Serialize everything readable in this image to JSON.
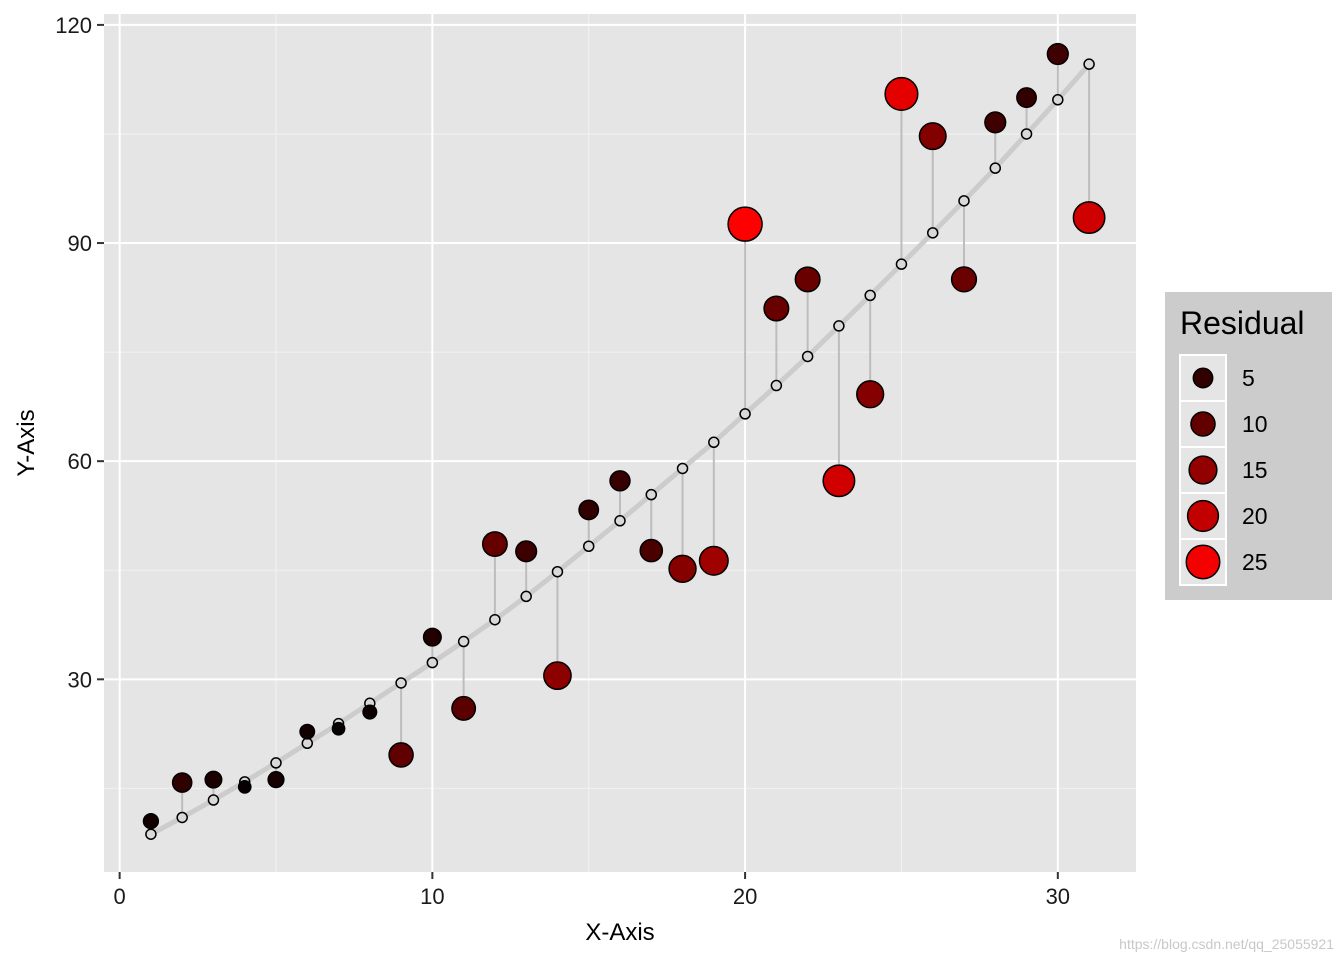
{
  "chart_data": {
    "type": "scatter",
    "xlabel": "X-Axis",
    "ylabel": "Y-Axis",
    "xlim": [
      -0.5,
      32.5
    ],
    "ylim": [
      3.5,
      121.5
    ],
    "x_ticks": [
      0,
      10,
      20,
      30
    ],
    "x_tick_labels": [
      "0",
      "10",
      "20",
      "30"
    ],
    "y_ticks": [
      30,
      60,
      90,
      120
    ],
    "y_tick_labels": [
      "30",
      "60",
      "90",
      "120"
    ],
    "grid": true,
    "panel_background": "#e5e5e5",
    "fitted_line_color": "#cccccc",
    "residual_segment_color": "#bdbdbd",
    "x": [
      1,
      2,
      3,
      4,
      5,
      6,
      7,
      8,
      9,
      10,
      11,
      12,
      13,
      14,
      15,
      16,
      17,
      18,
      19,
      20,
      21,
      22,
      23,
      24,
      25,
      26,
      27,
      28,
      29,
      30,
      31
    ],
    "observed": [
      10.5,
      15.8,
      16.2,
      15.2,
      16.2,
      22.8,
      23.2,
      25.5,
      19.6,
      35.8,
      26.0,
      48.6,
      47.6,
      30.5,
      53.3,
      57.3,
      47.7,
      45.2,
      46.3,
      92.6,
      81.0,
      85.0,
      57.3,
      69.2,
      110.5,
      104.7,
      85.0,
      106.6,
      110.0,
      116.0,
      93.5
    ],
    "predicted": [
      8.7,
      11.0,
      13.4,
      15.9,
      18.5,
      21.2,
      23.9,
      26.7,
      29.5,
      32.3,
      35.2,
      38.2,
      41.4,
      44.8,
      48.3,
      51.8,
      55.4,
      59.0,
      62.6,
      66.5,
      70.4,
      74.4,
      78.6,
      82.8,
      87.1,
      91.4,
      95.8,
      100.3,
      105.0,
      109.7,
      114.6
    ],
    "residual_abs": [
      1.8,
      4.8,
      2.8,
      0.7,
      2.3,
      1.6,
      0.7,
      1.2,
      9.9,
      3.5,
      9.2,
      10.4,
      6.2,
      14.3,
      5.0,
      5.5,
      7.7,
      13.8,
      16.3,
      26.1,
      10.6,
      10.6,
      21.3,
      13.6,
      23.4,
      13.3,
      10.8,
      6.3,
      5.0,
      6.3,
      21.1
    ],
    "color_scale": {
      "low": "#000000",
      "high": "#ff0000",
      "min": 0,
      "max": 26.1
    },
    "legend": {
      "title": "Residual",
      "position": "right",
      "entries": [
        {
          "label": "5",
          "value": 5
        },
        {
          "label": "10",
          "value": 10
        },
        {
          "label": "15",
          "value": 15
        },
        {
          "label": "20",
          "value": 20
        },
        {
          "label": "25",
          "value": 25
        }
      ]
    }
  },
  "watermark": "https://blog.csdn.net/qq_25055921"
}
